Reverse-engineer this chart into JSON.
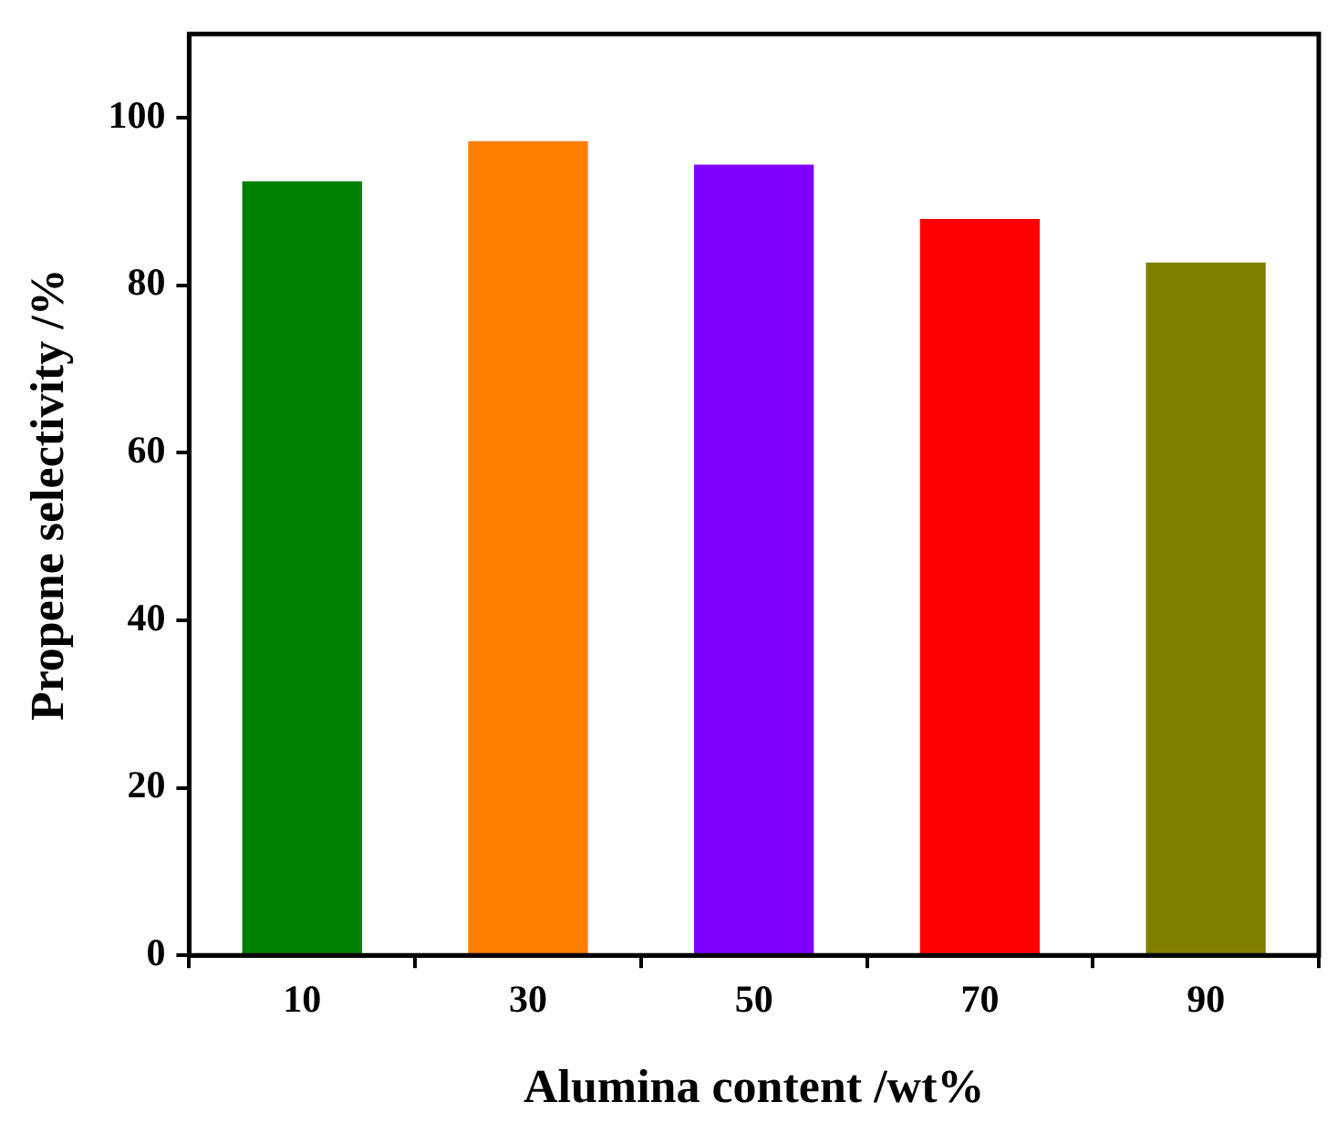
{
  "chart_data": {
    "type": "bar",
    "xlabel": "Alumina content /wt%",
    "ylabel": "Propene selectivity /%",
    "categories": [
      "10",
      "30",
      "50",
      "70",
      "90"
    ],
    "values": [
      92.4,
      97.2,
      94.4,
      87.9,
      82.7
    ],
    "colors": [
      "#008000",
      "#ff8000",
      "#8000ff",
      "#ff0000",
      "#808000"
    ],
    "ylim": [
      0,
      110
    ],
    "yticks": [
      0,
      20,
      40,
      60,
      80,
      100
    ],
    "grid": false,
    "legend": false
  }
}
